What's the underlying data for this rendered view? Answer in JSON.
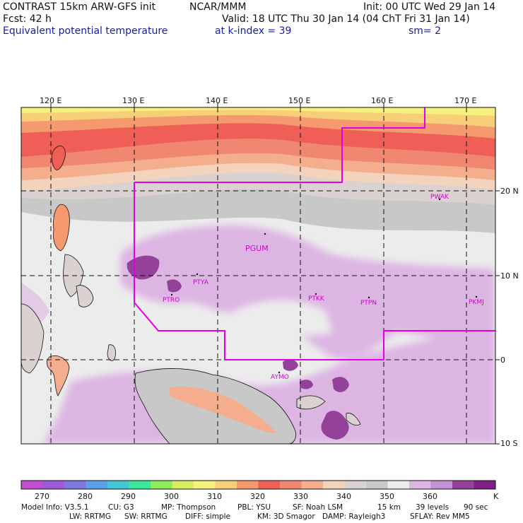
{
  "header": {
    "line1_left": "CONTRAST 15km ARW-GFS init",
    "line1_mid": "NCAR/MMM",
    "line1_right": "Init: 00 UTC Wed 29 Jan 14",
    "line2_left": "Fcst:    42 h",
    "line2_right": "Valid: 18 UTC Thu 30 Jan 14 (04 ChT Fri 31 Jan 14)",
    "line3_left": "Equivalent potential temperature",
    "line3_mid": "at k-index =  39",
    "line3_right": "sm= 2"
  },
  "longitudes": [
    "120 E",
    "130 E",
    "140 E",
    "150 E",
    "160 E",
    "170 E"
  ],
  "latitudes": [
    "20 N",
    "10 N",
    "0",
    "10 S"
  ],
  "stations": [
    {
      "id": "PWAK"
    },
    {
      "id": "PGUM"
    },
    {
      "id": "PTYA"
    },
    {
      "id": "PTRO"
    },
    {
      "id": "PTKK"
    },
    {
      "id": "PTPN"
    },
    {
      "id": "PKMJ"
    },
    {
      "id": "AYMO"
    }
  ],
  "colorbar": {
    "ticks": [
      "270",
      "280",
      "290",
      "300",
      "310",
      "320",
      "330",
      "340",
      "350",
      "360"
    ],
    "unit": "K",
    "colors": [
      "#c14fd0",
      "#9b5ad8",
      "#7f77e0",
      "#5c9fe6",
      "#41c6d6",
      "#3ce89c",
      "#8cec5a",
      "#d8ee5e",
      "#f7f07c",
      "#f7cf78",
      "#f59a6e",
      "#ef5f58",
      "#f08770",
      "#f4ae8e",
      "#f3d3bb",
      "#d9d2d0",
      "#c8c8c8",
      "#ececec",
      "#ddb5e3",
      "#c590d5",
      "#93419b",
      "#7d1f86"
    ]
  },
  "footer": {
    "line1": [
      "Model Info: V3.5.1",
      "CU: G3",
      "MP: Thompson",
      "PBL: YSU",
      "SF: Noah LSM",
      "15 km",
      "39 levels",
      "90 sec"
    ],
    "line2": [
      "LW: RRTMG",
      "SW: RRTMG",
      "DIFF: simple",
      "KM: 3D Smagor",
      "DAMP: Rayleigh3",
      "SFLAY: Rev MM5"
    ]
  },
  "colors": {
    "boundary": "#e000e0",
    "gridline": "#111111"
  }
}
